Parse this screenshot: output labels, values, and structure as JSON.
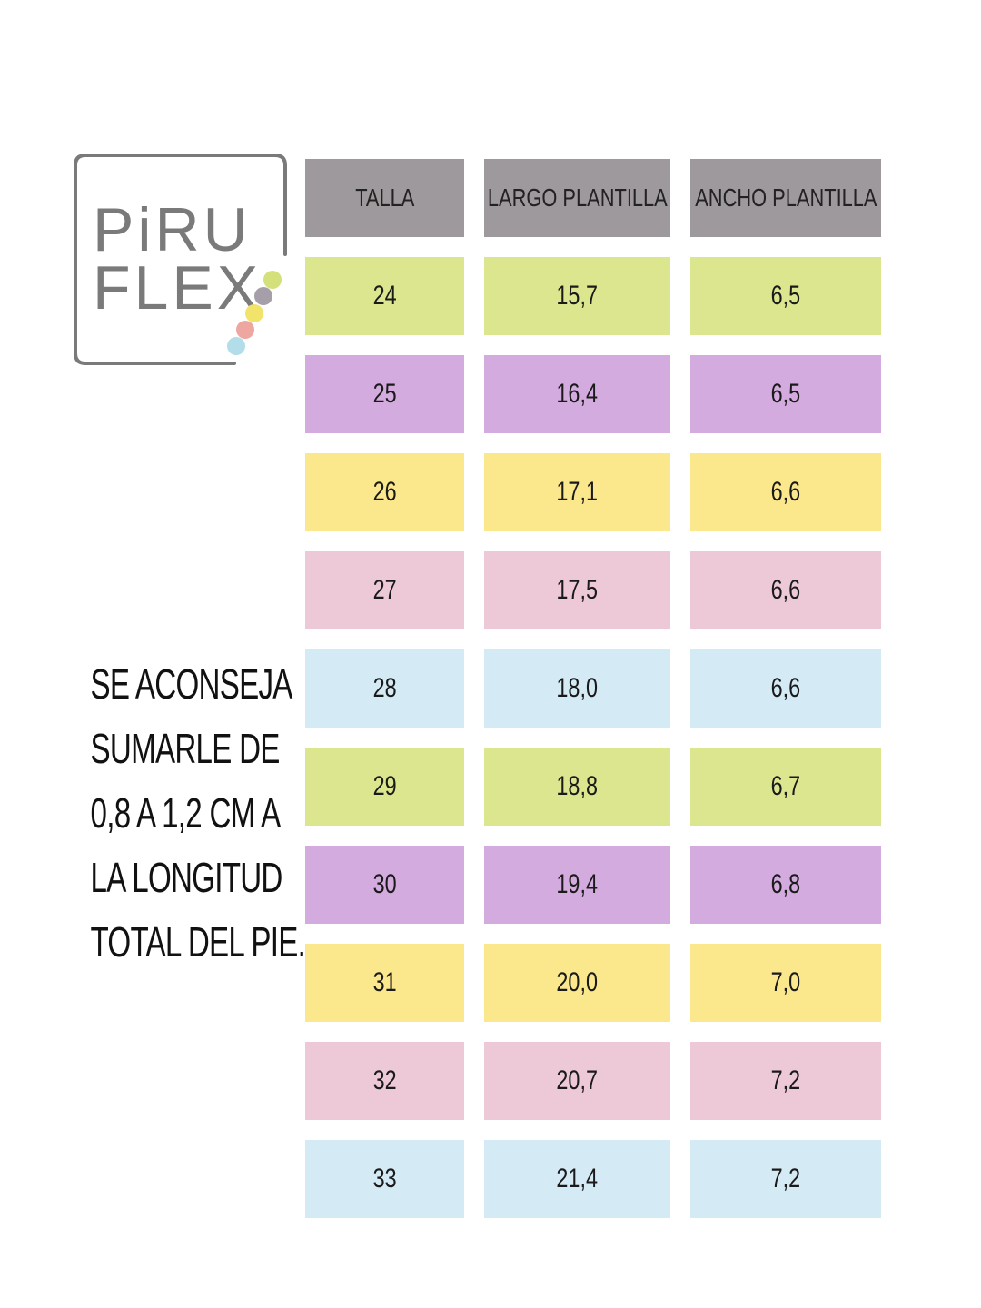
{
  "logo": {
    "line1": "PiRU",
    "line2": "FLEX",
    "frame_color": "#7a7a7a",
    "dot_colors": [
      "#d4e07a",
      "#a69ea8",
      "#f2e36a",
      "#eda7a0",
      "#b3dde9"
    ]
  },
  "advice": {
    "lines": [
      "SE ACONSEJA",
      "SUMARLE DE",
      "0,8 A 1,2 CM A",
      "LA LONGITUD",
      "TOTAL DEL PIE."
    ]
  },
  "table": {
    "headers": [
      "TALLA",
      "LARGO PLANTILLA",
      "ANCHO PLANTILLA"
    ],
    "header_color": "#9e999c",
    "rows": [
      {
        "talla": "24",
        "largo": "15,7",
        "ancho": "6,5",
        "color": "#dbe68f"
      },
      {
        "talla": "25",
        "largo": "16,4",
        "ancho": "6,5",
        "color": "#d4abde"
      },
      {
        "talla": "26",
        "largo": "17,1",
        "ancho": "6,6",
        "color": "#fbe78c"
      },
      {
        "talla": "27",
        "largo": "17,5",
        "ancho": "6,6",
        "color": "#edc9d8"
      },
      {
        "talla": "28",
        "largo": "18,0",
        "ancho": "6,6",
        "color": "#d4eaf5"
      },
      {
        "talla": "29",
        "largo": "18,8",
        "ancho": "6,7",
        "color": "#dbe68f"
      },
      {
        "talla": "30",
        "largo": "19,4",
        "ancho": "6,8",
        "color": "#d4abde"
      },
      {
        "talla": "31",
        "largo": "20,0",
        "ancho": "7,0",
        "color": "#fbe78c"
      },
      {
        "talla": "32",
        "largo": "20,7",
        "ancho": "7,2",
        "color": "#edc9d8"
      },
      {
        "talla": "33",
        "largo": "21,4",
        "ancho": "7,2",
        "color": "#d4eaf5"
      }
    ]
  }
}
